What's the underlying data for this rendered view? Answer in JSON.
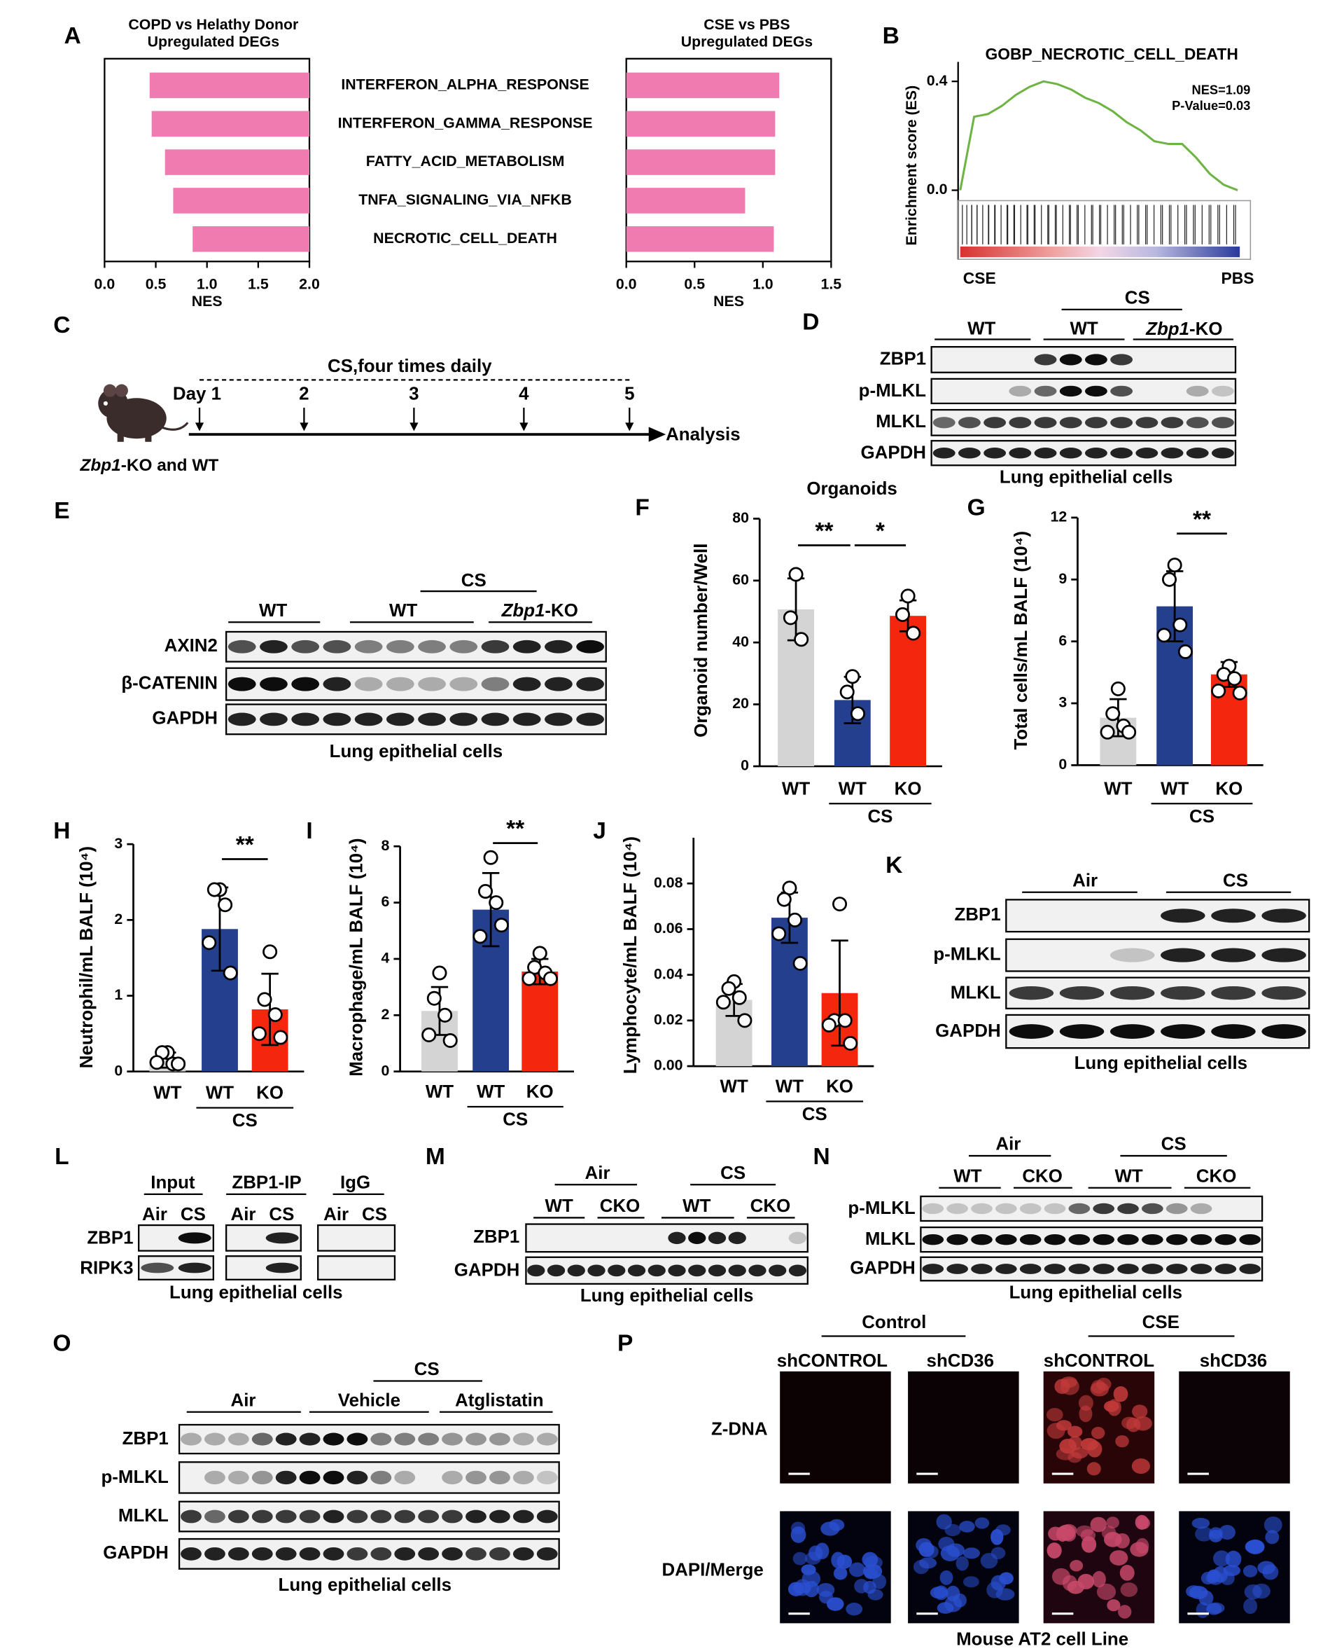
{
  "panel_letters": [
    "A",
    "B",
    "C",
    "D",
    "E",
    "F",
    "G",
    "H",
    "I",
    "J",
    "K",
    "L",
    "M",
    "N",
    "O",
    "P"
  ],
  "chart_data": [
    {
      "type": "hbar",
      "title": [
        "COPD vs Helathy Donor",
        "Upregulated DEGs"
      ],
      "x_label": "NES",
      "categories": [
        "INTERFERON_ALPHA_RESPONSE",
        "INTERFERON_GAMMA_RESPONSE",
        "FATTY_ACID_METABOLISM",
        "TNFA_SIGNALING_VIA_NFKB",
        "NECROTIC_CELL_DEATH"
      ],
      "values": [
        0.44,
        0.46,
        0.59,
        0.67,
        0.86
      ],
      "bar_anchor": "end",
      "color": "#ef7bb1",
      "xlim": [
        0,
        2
      ],
      "xticks": [
        {
          "value": 0,
          "label": "0.0"
        },
        {
          "value": 0.5,
          "label": "0.5"
        },
        {
          "value": 1,
          "label": "1.0"
        },
        {
          "value": 1.5,
          "label": "1.5"
        },
        {
          "value": 2,
          "label": "2.0"
        }
      ]
    },
    {
      "type": "hbar",
      "title": [
        "CSE vs PBS",
        "Upregulated DEGs"
      ],
      "x_label": "NES",
      "values": [
        1.12,
        1.09,
        1.09,
        0.87,
        1.08
      ],
      "color": "#ef7bb1",
      "xlim": [
        0,
        1.5
      ],
      "xticks": [
        {
          "value": 0,
          "label": "0.0"
        },
        {
          "value": 0.5,
          "label": "0.5"
        },
        {
          "value": 1,
          "label": "1.0"
        },
        {
          "value": 1.5,
          "label": "1.5"
        }
      ]
    },
    {
      "type": "line",
      "title": "GOBP_NECROTIC_CELL_DEATH",
      "y_label": "Enrichment score (ES)",
      "values": [
        0,
        0.27,
        0.28,
        0.31,
        0.35,
        0.38,
        0.4,
        0.39,
        0.37,
        0.34,
        0.32,
        0.29,
        0.25,
        0.22,
        0.18,
        0.17,
        0.17,
        0.12,
        0.06,
        0.02,
        0
      ],
      "color": "#6db443",
      "ylim": [
        -0.05,
        0.45
      ],
      "yticks": [
        {
          "value": 0.4,
          "label": "0.4"
        },
        {
          "value": 0,
          "label": "0.0"
        }
      ],
      "annotations": [
        "NES=1.09",
        "P-Value=0.03"
      ],
      "x_end_labels": [
        "CSE",
        "PBS"
      ]
    },
    {
      "type": "bar",
      "title": "Organoids",
      "y_label": "Organoid number/Well",
      "categories": [
        "WT",
        "WT",
        "KO"
      ],
      "group_label": "CS",
      "values": [
        50.7,
        21.4,
        48.6
      ],
      "errors": [
        10,
        7.5,
        5
      ],
      "points": [
        [
          62,
          48,
          41
        ],
        [
          29,
          24,
          17
        ],
        [
          55,
          49,
          43
        ]
      ],
      "colors": [
        "#d4d4d4",
        "#233f8e",
        "#f4260e"
      ],
      "ylim": [
        0,
        80
      ],
      "yticks": [
        0,
        20,
        40,
        60,
        80
      ],
      "significance": [
        {
          "from": 0,
          "to": 1,
          "label": "**"
        },
        {
          "from": 1,
          "to": 2,
          "label": "*"
        }
      ]
    },
    {
      "type": "bar",
      "y_label": "Total cells/mL BALF (10⁴)",
      "categories": [
        "WT",
        "WT",
        "KO"
      ],
      "group_label": "CS",
      "values": [
        2.3,
        7.7,
        4.4
      ],
      "errors": [
        0.9,
        1.7,
        0.6
      ],
      "points": [
        [
          3.7,
          2.5,
          1.9,
          1.6,
          1.6
        ],
        [
          9.7,
          9.0,
          6.8,
          6.3,
          5.5
        ],
        [
          4.8,
          4.4,
          4.2,
          3.6,
          3.5
        ]
      ],
      "colors": [
        "#d4d4d4",
        "#233f8e",
        "#f4260e"
      ],
      "ylim": [
        0,
        12
      ],
      "yticks": [
        0,
        3,
        6,
        9,
        12
      ],
      "significance": [
        {
          "from": 1,
          "to": 2,
          "label": "**"
        }
      ]
    },
    {
      "type": "bar",
      "y_label": "Neutrophil/mL BALF (10⁴)",
      "categories": [
        "WT",
        "WT",
        "KO"
      ],
      "group_label": "CS",
      "values": [
        0.15,
        1.88,
        0.82
      ],
      "errors": [
        0.1,
        0.55,
        0.47
      ],
      "points": [
        [
          0.25,
          0.25,
          0.1,
          0.12,
          0.1
        ],
        [
          2.4,
          2.4,
          2.2,
          1.7,
          1.3
        ],
        [
          1.58,
          0.95,
          0.75,
          0.5,
          0.45
        ]
      ],
      "colors": [
        "#d4d4d4",
        "#233f8e",
        "#f4260e"
      ],
      "ylim": [
        0,
        3
      ],
      "yticks": [
        0,
        1,
        2,
        3
      ],
      "significance": [
        {
          "from": 1,
          "to": 2,
          "label": "**"
        }
      ]
    },
    {
      "type": "bar",
      "y_label": "Macrophage/mL BALF (10⁴)",
      "categories": [
        "WT",
        "WT",
        "KO"
      ],
      "group_label": "CS",
      "values": [
        2.15,
        5.75,
        3.55
      ],
      "errors": [
        0.85,
        1.3,
        0.45
      ],
      "points": [
        [
          3.5,
          2.6,
          2.0,
          1.3,
          1.1
        ],
        [
          7.6,
          6.4,
          6.0,
          4.8,
          5.2
        ],
        [
          4.2,
          3.7,
          3.5,
          3.3,
          3.3
        ]
      ],
      "colors": [
        "#d4d4d4",
        "#233f8e",
        "#f4260e"
      ],
      "ylim": [
        0,
        8
      ],
      "yticks": [
        0,
        2,
        4,
        6,
        8
      ],
      "significance": [
        {
          "from": 1,
          "to": 2,
          "label": "**"
        }
      ]
    },
    {
      "type": "bar",
      "y_label": "Lymphocyte/mL BALF (10⁴)",
      "categories": [
        "WT",
        "WT",
        "KO"
      ],
      "group_label": "CS",
      "values": [
        0.029,
        0.065,
        0.032
      ],
      "errors": [
        0.007,
        0.011,
        0.023
      ],
      "points": [
        [
          0.037,
          0.034,
          0.03,
          0.028,
          0.02
        ],
        [
          0.078,
          0.073,
          0.064,
          0.058,
          0.045
        ],
        [
          0.071,
          0.02,
          0.02,
          0.018,
          0.01
        ]
      ],
      "colors": [
        "#d4d4d4",
        "#233f8e",
        "#f4260e"
      ],
      "ylim": [
        0,
        0.1
      ],
      "yticks": [
        {
          "value": 0,
          "label": "0.00"
        },
        {
          "value": 0.02,
          "label": "0.02"
        },
        {
          "value": 0.04,
          "label": "0.04"
        },
        {
          "value": 0.06,
          "label": "0.06"
        },
        {
          "value": 0.08,
          "label": "0.08"
        }
      ]
    }
  ],
  "panel_C": {
    "title": "CS,four times daily",
    "days": [
      "Day 1",
      "2",
      "3",
      "4",
      "5"
    ],
    "end_label": "Analysis",
    "mice": "Zbp1-KO and WT"
  },
  "panel_D": {
    "header_top": "CS",
    "headers": [
      "WT",
      "WT",
      "Zbp1-KO"
    ],
    "rows": [
      "ZBP1",
      "p-MLKL",
      "MLKL",
      "GAPDH"
    ],
    "caption": "Lung epithelial cells"
  },
  "panel_E": {
    "header_top": "CS",
    "headers": [
      "WT",
      "WT",
      "Zbp1-KO"
    ],
    "rows": [
      "AXIN2",
      "β-CATENIN",
      "GAPDH"
    ],
    "caption": "Lung epithelial cells"
  },
  "panel_K": {
    "headers": [
      "Air",
      "CS"
    ],
    "rows": [
      "ZBP1",
      "p-MLKL",
      "MLKL",
      "GAPDH"
    ],
    "caption": "Lung epithelial cells"
  },
  "panel_L": {
    "groups": [
      "Input",
      "ZBP1-IP",
      "IgG"
    ],
    "lanes": [
      [
        "Air",
        "CS"
      ],
      [
        "Air",
        "CS"
      ],
      [
        "Air",
        "CS"
      ]
    ],
    "rows": [
      "ZBP1",
      "RIPK3"
    ],
    "caption": "Lung epithelial cells"
  },
  "panel_M": {
    "headers": [
      "Air",
      "CS"
    ],
    "subheaders": [
      "WT",
      "CKO",
      "WT",
      "CKO"
    ],
    "rows": [
      "ZBP1",
      "GAPDH"
    ],
    "caption": "Lung epithelial cells"
  },
  "panel_N": {
    "headers": [
      "Air",
      "CS"
    ],
    "subheaders": [
      "WT",
      "CKO",
      "WT",
      "CKO"
    ],
    "rows": [
      "p-MLKL",
      "MLKL",
      "GAPDH"
    ],
    "caption": "Lung epithelial cells"
  },
  "panel_O": {
    "header_top": "CS",
    "headers": [
      "Air",
      "Vehicle",
      "Atglistatin"
    ],
    "rows": [
      "ZBP1",
      "p-MLKL",
      "MLKL",
      "GAPDH"
    ],
    "caption": "Lung epithelial cells"
  },
  "panel_P": {
    "conditions": [
      "Control",
      "CSE"
    ],
    "columns": [
      "shCONTROL",
      "shCD36",
      "shCONTROL",
      "shCD36"
    ],
    "rows": [
      "Z-DNA",
      "DAPI/Merge"
    ],
    "caption": "Mouse AT2 cell Line"
  }
}
